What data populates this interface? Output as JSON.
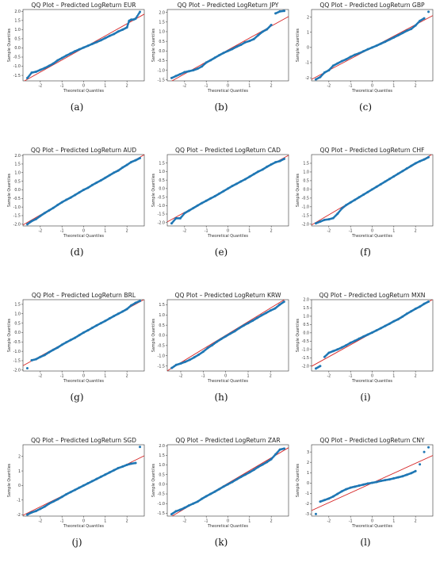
{
  "page": {
    "background": "#ffffff"
  },
  "style": {
    "point_color": "#1f77b4",
    "line_color": "#d62728"
  },
  "chart_data": [
    {
      "type": "scatter",
      "caption": "(a)",
      "title": "QQ Plot – Predicted LogReturn EUR",
      "xlabel": "Theoretical Quantiles",
      "ylabel": "Sample Quantiles",
      "xlim": [
        -2.8,
        2.8
      ],
      "ylim": [
        -1.8,
        2.1
      ],
      "xticks": [
        -2,
        -1,
        0,
        1,
        2
      ],
      "yticks": [
        -1.5,
        -1.0,
        -0.5,
        0.0,
        0.5,
        1.0,
        1.5,
        2.0
      ],
      "x": [
        -2.6,
        -2.4,
        -2.2,
        -2.0,
        -1.8,
        -1.6,
        -1.4,
        -1.2,
        -1.0,
        -0.8,
        -0.6,
        -0.4,
        -0.2,
        0.0,
        0.2,
        0.4,
        0.6,
        0.8,
        1.0,
        1.2,
        1.4,
        1.6,
        1.8,
        2.0,
        2.1,
        2.2,
        2.3,
        2.4,
        2.6
      ],
      "y": [
        -1.65,
        -1.35,
        -1.3,
        -1.2,
        -1.1,
        -0.98,
        -0.85,
        -0.68,
        -0.55,
        -0.42,
        -0.3,
        -0.18,
        -0.08,
        0.02,
        0.12,
        0.22,
        0.32,
        0.42,
        0.54,
        0.66,
        0.76,
        0.9,
        1.0,
        1.12,
        1.48,
        1.55,
        1.55,
        1.6,
        1.97
      ],
      "fit": {
        "slope": 0.66,
        "intercept": 0.0
      }
    },
    {
      "type": "scatter",
      "caption": "(b)",
      "title": "QQ Plot – Predicted LogReturn JPY",
      "xlabel": "Theoretical Quantiles",
      "ylabel": "Sample Quantiles",
      "xlim": [
        -2.8,
        2.8
      ],
      "ylim": [
        -1.55,
        2.15
      ],
      "xticks": [
        -2,
        -1,
        0,
        1,
        2
      ],
      "yticks": [
        -1.5,
        -1.0,
        -0.5,
        0.0,
        0.5,
        1.0,
        1.5,
        2.0
      ],
      "x": [
        -2.6,
        -2.4,
        -2.2,
        -2.0,
        -1.8,
        -1.6,
        -1.4,
        -1.2,
        -1.0,
        -0.8,
        -0.6,
        -0.4,
        -0.2,
        0.0,
        0.2,
        0.4,
        0.6,
        0.8,
        1.0,
        1.2,
        1.4,
        1.6,
        1.8,
        2.0,
        2.2,
        2.4,
        2.6
      ],
      "y": [
        -1.4,
        -1.3,
        -1.2,
        -1.1,
        -1.05,
        -1.0,
        -0.92,
        -0.8,
        -0.6,
        -0.48,
        -0.35,
        -0.22,
        -0.1,
        0.0,
        0.1,
        0.22,
        0.32,
        0.45,
        0.52,
        0.62,
        0.82,
        1.0,
        1.12,
        1.35,
        1.95,
        2.05,
        2.08
      ],
      "fit": {
        "slope": 0.62,
        "intercept": 0.05
      }
    },
    {
      "type": "scatter",
      "caption": "(c)",
      "title": "QQ Plot – Predicted LogReturn GBP",
      "xlabel": "Theoretical Quantiles",
      "ylabel": "Sample Quantiles",
      "xlim": [
        -2.8,
        2.8
      ],
      "ylim": [
        -2.2,
        2.5
      ],
      "xticks": [
        -2,
        -1,
        0,
        1,
        2
      ],
      "yticks": [
        -2,
        -1,
        0,
        1,
        2
      ],
      "x": [
        -2.6,
        -2.4,
        -2.2,
        -2.0,
        -1.8,
        -1.6,
        -1.4,
        -1.2,
        -1.0,
        -0.8,
        -0.6,
        -0.4,
        -0.2,
        0.0,
        0.2,
        0.4,
        0.6,
        0.8,
        1.0,
        1.2,
        1.4,
        1.6,
        1.8,
        2.0,
        2.2,
        2.4,
        2.6
      ],
      "y": [
        -2.1,
        -1.95,
        -1.65,
        -1.5,
        -1.2,
        -1.05,
        -0.9,
        -0.78,
        -0.62,
        -0.48,
        -0.38,
        -0.25,
        -0.12,
        0.0,
        0.12,
        0.25,
        0.38,
        0.52,
        0.66,
        0.8,
        0.95,
        1.1,
        1.22,
        1.45,
        1.75,
        1.92,
        2.35
      ],
      "fit": {
        "slope": 0.75,
        "intercept": 0.0
      }
    },
    {
      "type": "scatter",
      "caption": "(d)",
      "title": "QQ Plot – Predicted LogReturn AUD",
      "xlabel": "Theoretical Quantiles",
      "ylabel": "Sample Quantiles",
      "xlim": [
        -2.8,
        2.8
      ],
      "ylim": [
        -2.1,
        2.05
      ],
      "xticks": [
        -2,
        -1,
        0,
        1,
        2
      ],
      "yticks": [
        -2.0,
        -1.5,
        -1.0,
        -0.5,
        0.0,
        0.5,
        1.0,
        1.5,
        2.0
      ],
      "x": [
        -2.6,
        -2.4,
        -2.2,
        -2.0,
        -1.8,
        -1.6,
        -1.4,
        -1.2,
        -1.0,
        -0.8,
        -0.6,
        -0.4,
        -0.2,
        0.0,
        0.2,
        0.4,
        0.6,
        0.8,
        1.0,
        1.2,
        1.4,
        1.6,
        1.8,
        2.0,
        2.2,
        2.4,
        2.6
      ],
      "y": [
        -2.0,
        -1.82,
        -1.7,
        -1.52,
        -1.35,
        -1.2,
        -1.05,
        -0.88,
        -0.72,
        -0.58,
        -0.45,
        -0.3,
        -0.15,
        0.0,
        0.12,
        0.28,
        0.42,
        0.55,
        0.7,
        0.85,
        1.0,
        1.12,
        1.3,
        1.45,
        1.62,
        1.72,
        1.85
      ],
      "fit": {
        "slope": 0.73,
        "intercept": 0.0
      }
    },
    {
      "type": "scatter",
      "caption": "(e)",
      "title": "QQ Plot – Predicted LogReturn CAD",
      "xlabel": "Theoretical Quantiles",
      "ylabel": "Sample Quantiles",
      "xlim": [
        -2.8,
        2.8
      ],
      "ylim": [
        -2.2,
        2.0
      ],
      "xticks": [
        -2,
        -1,
        0,
        1,
        2
      ],
      "yticks": [
        -2.0,
        -1.5,
        -1.0,
        -0.5,
        0.0,
        0.5,
        1.0,
        1.5
      ],
      "x": [
        -2.6,
        -2.4,
        -2.2,
        -2.0,
        -1.8,
        -1.6,
        -1.4,
        -1.2,
        -1.0,
        -0.8,
        -0.6,
        -0.4,
        -0.2,
        0.0,
        0.2,
        0.4,
        0.6,
        0.8,
        1.0,
        1.2,
        1.4,
        1.6,
        1.8,
        2.0,
        2.2,
        2.4,
        2.6
      ],
      "y": [
        -2.05,
        -1.75,
        -1.75,
        -1.45,
        -1.3,
        -1.15,
        -1.0,
        -0.85,
        -0.72,
        -0.58,
        -0.45,
        -0.3,
        -0.15,
        0.0,
        0.15,
        0.28,
        0.42,
        0.55,
        0.7,
        0.85,
        1.0,
        1.12,
        1.28,
        1.42,
        1.55,
        1.62,
        1.75
      ],
      "fit": {
        "slope": 0.7,
        "intercept": 0.0
      }
    },
    {
      "type": "scatter",
      "caption": "(f)",
      "title": "QQ Plot – Predicted LogReturn CHF",
      "xlabel": "Theoretical Quantiles",
      "ylabel": "Sample Quantiles",
      "xlim": [
        -2.8,
        2.8
      ],
      "ylim": [
        -2.1,
        2.0
      ],
      "xticks": [
        -2,
        -1,
        0,
        1,
        2
      ],
      "yticks": [
        -2.0,
        -1.5,
        -1.0,
        -0.5,
        0.0,
        0.5,
        1.0,
        1.5
      ],
      "x": [
        -2.6,
        -2.4,
        -2.2,
        -2.0,
        -1.8,
        -1.6,
        -1.4,
        -1.2,
        -1.0,
        -0.8,
        -0.6,
        -0.4,
        -0.2,
        0.0,
        0.2,
        0.4,
        0.6,
        0.8,
        1.0,
        1.2,
        1.4,
        1.6,
        1.8,
        2.0,
        2.2,
        2.4,
        2.6
      ],
      "y": [
        -1.95,
        -1.85,
        -1.75,
        -1.72,
        -1.65,
        -1.4,
        -1.1,
        -0.9,
        -0.75,
        -0.6,
        -0.45,
        -0.3,
        -0.15,
        0.0,
        0.15,
        0.3,
        0.45,
        0.6,
        0.75,
        0.9,
        1.05,
        1.2,
        1.35,
        1.5,
        1.62,
        1.72,
        1.85
      ],
      "fit": {
        "slope": 0.73,
        "intercept": 0.0
      }
    },
    {
      "type": "scatter",
      "caption": "(g)",
      "title": "QQ Plot – Predicted LogReturn BRL",
      "xlabel": "Theoretical Quantiles",
      "ylabel": "Sample Quantiles",
      "xlim": [
        -2.8,
        2.8
      ],
      "ylim": [
        -2.05,
        1.75
      ],
      "xticks": [
        -2,
        -1,
        0,
        1,
        2
      ],
      "yticks": [
        -2.0,
        -1.5,
        -1.0,
        -0.5,
        0.0,
        0.5,
        1.0,
        1.5
      ],
      "x": [
        -2.6,
        -2.4,
        -2.2,
        -2.0,
        -1.8,
        -1.6,
        -1.4,
        -1.2,
        -1.0,
        -0.8,
        -0.6,
        -0.4,
        -0.2,
        0.0,
        0.2,
        0.4,
        0.6,
        0.8,
        1.0,
        1.2,
        1.4,
        1.6,
        1.8,
        2.0,
        2.2,
        2.4,
        2.6
      ],
      "y": [
        -1.9,
        -1.48,
        -1.42,
        -1.3,
        -1.2,
        -1.05,
        -0.92,
        -0.8,
        -0.65,
        -0.52,
        -0.4,
        -0.28,
        -0.14,
        0.0,
        0.12,
        0.25,
        0.38,
        0.5,
        0.62,
        0.75,
        0.88,
        1.0,
        1.12,
        1.25,
        1.45,
        1.58,
        1.68
      ],
      "fit": {
        "slope": 0.63,
        "intercept": 0.0
      }
    },
    {
      "type": "scatter",
      "caption": "(h)",
      "title": "QQ Plot – Predicted LogReturn KRW",
      "xlabel": "Theoretical Quantiles",
      "ylabel": "Sample Quantiles",
      "xlim": [
        -2.6,
        2.8
      ],
      "ylim": [
        -1.75,
        1.75
      ],
      "xticks": [
        -2,
        -1,
        0,
        1,
        2
      ],
      "yticks": [
        -1.5,
        -1.0,
        -0.5,
        0.0,
        0.5,
        1.0,
        1.5
      ],
      "x": [
        -2.4,
        -2.2,
        -2.0,
        -1.8,
        -1.6,
        -1.4,
        -1.2,
        -1.0,
        -0.8,
        -0.6,
        -0.4,
        -0.2,
        0.0,
        0.2,
        0.4,
        0.6,
        0.8,
        1.0,
        1.2,
        1.4,
        1.6,
        1.8,
        2.0,
        2.2,
        2.4,
        2.6
      ],
      "y": [
        -1.6,
        -1.45,
        -1.38,
        -1.3,
        -1.2,
        -1.08,
        -0.95,
        -0.8,
        -0.62,
        -0.48,
        -0.32,
        -0.18,
        -0.05,
        0.08,
        0.2,
        0.35,
        0.48,
        0.6,
        0.72,
        0.85,
        0.98,
        1.1,
        1.22,
        1.32,
        1.5,
        1.65
      ],
      "fit": {
        "slope": 0.67,
        "intercept": 0.0
      }
    },
    {
      "type": "scatter",
      "caption": "(i)",
      "title": "QQ Plot – Predicted LogReturn MXN",
      "xlabel": "Theoretical Quantiles",
      "ylabel": "Sample Quantiles",
      "xlim": [
        -2.8,
        2.8
      ],
      "ylim": [
        -2.3,
        2.0
      ],
      "xticks": [
        -2,
        -1,
        0,
        1,
        2
      ],
      "yticks": [
        -2.0,
        -1.5,
        -1.0,
        -0.5,
        0.0,
        0.5,
        1.0,
        1.5,
        2.0
      ],
      "x": [
        -2.6,
        -2.4,
        -2.2,
        -2.0,
        -1.8,
        -1.6,
        -1.4,
        -1.2,
        -1.0,
        -0.8,
        -0.6,
        -0.4,
        -0.2,
        0.0,
        0.2,
        0.4,
        0.6,
        0.8,
        1.0,
        1.2,
        1.4,
        1.6,
        1.8,
        2.0,
        2.2,
        2.4,
        2.6
      ],
      "y": [
        -2.15,
        -2.0,
        -1.45,
        -1.2,
        -1.1,
        -1.0,
        -0.88,
        -0.75,
        -0.6,
        -0.48,
        -0.35,
        -0.22,
        -0.1,
        0.02,
        0.15,
        0.28,
        0.42,
        0.55,
        0.7,
        0.82,
        0.98,
        1.15,
        1.3,
        1.45,
        1.58,
        1.75,
        1.88
      ],
      "fit": {
        "slope": 0.72,
        "intercept": 0.0
      }
    },
    {
      "type": "scatter",
      "caption": "(j)",
      "title": "QQ Plot – Predicted LogReturn SGD",
      "xlabel": "Theoretical Quantiles",
      "ylabel": "Sample Quantiles",
      "xlim": [
        -2.8,
        2.8
      ],
      "ylim": [
        -2.1,
        2.8
      ],
      "xticks": [
        -2,
        -1,
        0,
        1,
        2
      ],
      "yticks": [
        -2,
        -1,
        0,
        1,
        2
      ],
      "x": [
        -2.6,
        -2.4,
        -2.2,
        -2.0,
        -1.8,
        -1.6,
        -1.4,
        -1.2,
        -1.0,
        -0.8,
        -0.6,
        -0.4,
        -0.2,
        0.0,
        0.2,
        0.4,
        0.6,
        0.8,
        1.0,
        1.2,
        1.4,
        1.6,
        1.8,
        2.0,
        2.2,
        2.4,
        2.6
      ],
      "y": [
        -2.0,
        -1.85,
        -1.75,
        -1.6,
        -1.45,
        -1.25,
        -1.1,
        -0.95,
        -0.78,
        -0.6,
        -0.45,
        -0.3,
        -0.15,
        0.0,
        0.15,
        0.3,
        0.45,
        0.6,
        0.75,
        0.9,
        1.05,
        1.2,
        1.3,
        1.42,
        1.5,
        1.55,
        2.65
      ],
      "fit": {
        "slope": 0.73,
        "intercept": 0.0
      }
    },
    {
      "type": "scatter",
      "caption": "(k)",
      "title": "QQ Plot – Predicted LogReturn ZAR",
      "xlabel": "Theoretical Quantiles",
      "ylabel": "Sample Quantiles",
      "xlim": [
        -2.8,
        2.8
      ],
      "ylim": [
        -1.65,
        2.05
      ],
      "xticks": [
        -2,
        -1,
        0,
        1,
        2
      ],
      "yticks": [
        -1.5,
        -1.0,
        -0.5,
        0.0,
        0.5,
        1.0,
        1.5,
        2.0
      ],
      "x": [
        -2.6,
        -2.4,
        -2.2,
        -2.0,
        -1.8,
        -1.6,
        -1.4,
        -1.2,
        -1.0,
        -0.8,
        -0.6,
        -0.4,
        -0.2,
        0.0,
        0.2,
        0.4,
        0.6,
        0.8,
        1.0,
        1.2,
        1.4,
        1.6,
        1.8,
        2.0,
        2.2,
        2.4,
        2.6
      ],
      "y": [
        -1.55,
        -1.4,
        -1.32,
        -1.22,
        -1.1,
        -1.0,
        -0.9,
        -0.75,
        -0.62,
        -0.5,
        -0.38,
        -0.25,
        -0.12,
        0.0,
        0.12,
        0.25,
        0.38,
        0.5,
        0.62,
        0.75,
        0.9,
        1.02,
        1.15,
        1.3,
        1.55,
        1.8,
        1.85
      ],
      "fit": {
        "slope": 0.66,
        "intercept": 0.05
      }
    },
    {
      "type": "scatter",
      "caption": "(l)",
      "title": "QQ Plot – Predicted LogReturn CNY",
      "xlabel": "Theoretical Quantiles",
      "ylabel": "Sample Quantiles",
      "xlim": [
        -2.8,
        2.8
      ],
      "ylim": [
        -3.2,
        3.7
      ],
      "xticks": [
        -2,
        -1,
        0,
        1,
        2
      ],
      "yticks": [
        -3,
        -2,
        -1,
        0,
        1,
        2,
        3
      ],
      "x": [
        -2.6,
        -2.4,
        -2.2,
        -2.0,
        -1.8,
        -1.6,
        -1.4,
        -1.2,
        -1.0,
        -0.8,
        -0.6,
        -0.4,
        -0.2,
        0.0,
        0.2,
        0.4,
        0.6,
        0.8,
        1.0,
        1.2,
        1.4,
        1.6,
        1.8,
        2.0,
        2.2,
        2.4,
        2.6
      ],
      "y": [
        -3.0,
        -1.8,
        -1.65,
        -1.5,
        -1.3,
        -1.05,
        -0.8,
        -0.6,
        -0.45,
        -0.35,
        -0.25,
        -0.15,
        -0.05,
        0.02,
        0.1,
        0.2,
        0.28,
        0.35,
        0.45,
        0.55,
        0.65,
        0.8,
        0.95,
        1.15,
        1.8,
        3.0,
        3.45
      ],
      "fit": {
        "slope": 0.95,
        "intercept": 0.0
      }
    }
  ]
}
